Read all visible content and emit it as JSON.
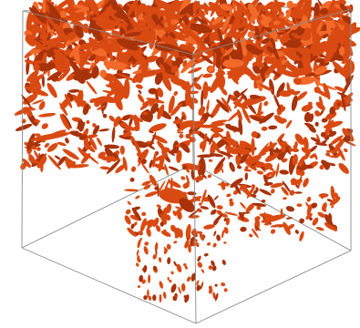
{
  "scene": {
    "kind": "3d-isosurface-render",
    "blob_color": "#d94a12",
    "blob_shadow": "#a8320a",
    "blob_highlight": "#f26a2a",
    "background": "#ffffff",
    "box_edge_color": "#8a8a8a"
  }
}
